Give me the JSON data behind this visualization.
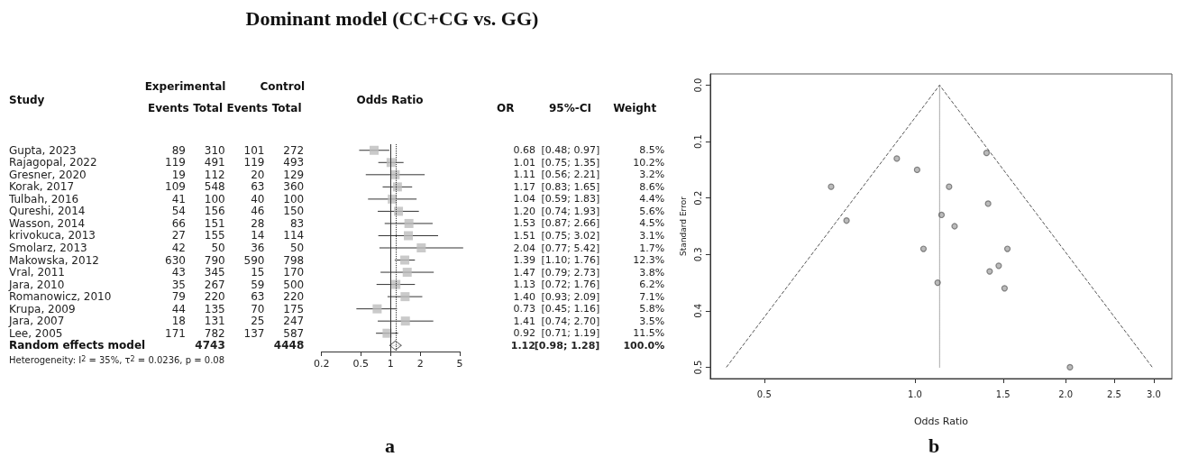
{
  "chart_data": [
    {
      "type": "heatmap",
      "title": "Dominant model (CC+CG vs. GG)",
      "ylabel": "Study",
      "categories": [
        "Events",
        "Total",
        "Events",
        "Total"
      ],
      "y_categories": [
        "Gupta, 2023",
        "Rajagopal, 2022",
        "Gresner, 2020",
        "Korak, 2017",
        "Tulbah, 2016",
        "Qureshi, 2014",
        "Wasson, 2014",
        "krivokuca, 2013",
        "Smolarz, 2013",
        "Makowska, 2012",
        "Vral, 2011",
        "Jara, 2010",
        "Romanowicz, 2010",
        "Krupa, 2009",
        "Jara, 2007",
        "Lee, 2005",
        "Random effects model"
      ],
      "cells": [
        [
          89,
          310,
          101,
          272
        ],
        [
          119,
          491,
          119,
          493
        ],
        [
          19,
          112,
          20,
          129
        ],
        [
          109,
          548,
          63,
          360
        ],
        [
          41,
          100,
          40,
          100
        ],
        [
          54,
          156,
          46,
          150
        ],
        [
          66,
          151,
          28,
          83
        ],
        [
          27,
          155,
          14,
          114
        ],
        [
          42,
          50,
          36,
          50
        ],
        [
          630,
          790,
          590,
          798
        ],
        [
          43,
          345,
          15,
          170
        ],
        [
          35,
          267,
          59,
          500
        ],
        [
          79,
          220,
          63,
          220
        ],
        [
          44,
          135,
          70,
          175
        ],
        [
          18,
          131,
          25,
          247
        ],
        [
          171,
          782,
          137,
          587
        ],
        [
          null,
          4743,
          null,
          4448
        ]
      ],
      "data_labels": true,
      "annotations": [
        "Experimental",
        "Control",
        "Heterogeneity: I$^{2}$ = 35%, τ$^{2}$ = 0.0236, p = 0.08"
      ]
    },
    {
      "type": "scatter",
      "xlabel": "Odds Ratio",
      "orientation": "horizontal",
      "log": "x",
      "xlim": [
        0.2,
        5
      ],
      "xticks": [
        0.2,
        0.5,
        1,
        2,
        5
      ],
      "tick_labels": "x",
      "grid": false,
      "categories": [
        null,
        null,
        null,
        null,
        null,
        null,
        null,
        null,
        null,
        null,
        null,
        null,
        null,
        null,
        null,
        null,
        null
      ],
      "series": [
        {
          "color": "#bdbdbd",
          "marker": "square",
          "values": [
            0.68,
            1.01,
            1.11,
            1.17,
            1.04,
            1.2,
            1.53,
            1.51,
            2.04,
            1.39,
            1.47,
            1.13,
            1.4,
            0.73,
            1.41,
            0.92,
            null
          ],
          "errors": [
            [
              0.48,
              0.97
            ],
            [
              0.75,
              1.35
            ],
            [
              0.56,
              2.21
            ],
            [
              0.83,
              1.65
            ],
            [
              0.59,
              1.83
            ],
            [
              0.74,
              1.93
            ],
            [
              0.87,
              2.66
            ],
            [
              0.75,
              3.02
            ],
            [
              0.77,
              5.42
            ],
            [
              1.1,
              1.76
            ],
            [
              0.79,
              2.73
            ],
            [
              0.72,
              1.76
            ],
            [
              0.93,
              2.09
            ],
            [
              0.45,
              1.16
            ],
            [
              0.74,
              2.7
            ],
            [
              0.71,
              1.19
            ],
            null
          ]
        },
        {
          "color": "#ffffff",
          "marker": "diamond",
          "values": [
            null,
            null,
            null,
            null,
            null,
            null,
            null,
            null,
            null,
            null,
            null,
            null,
            null,
            null,
            null,
            null,
            1.12
          ],
          "errors": [
            null,
            null,
            null,
            null,
            null,
            null,
            null,
            null,
            null,
            null,
            null,
            null,
            null,
            null,
            null,
            null,
            [
              0.98,
              1.28
            ]
          ]
        }
      ],
      "ref_lines": [
        {
          "axis": "x",
          "value": 1,
          "color": "#333333",
          "line_style": "solid"
        },
        {
          "axis": "x",
          "value": 1.12,
          "color": "#333333",
          "line_style": "dotted"
        }
      ],
      "annotations": [
        "a"
      ]
    },
    {
      "type": "heatmap",
      "categories": [
        "OR",
        "95%-CI",
        "Weight"
      ],
      "y_categories": [
        null,
        null,
        null,
        null,
        null,
        null,
        null,
        null,
        null,
        null,
        null,
        null,
        null,
        null,
        null,
        null,
        null
      ],
      "cells": [
        [
          0.68,
          null,
          8.5
        ],
        [
          1.01,
          null,
          10.2
        ],
        [
          1.11,
          null,
          3.2
        ],
        [
          1.17,
          null,
          8.6
        ],
        [
          1.04,
          null,
          4.4
        ],
        [
          1.2,
          null,
          5.6
        ],
        [
          1.53,
          null,
          4.5
        ],
        [
          1.51,
          null,
          3.1
        ],
        [
          2.04,
          null,
          1.7
        ],
        [
          1.39,
          null,
          12.3
        ],
        [
          1.47,
          null,
          3.8
        ],
        [
          1.13,
          null,
          6.2
        ],
        [
          1.4,
          null,
          7.1
        ],
        [
          0.73,
          null,
          5.8
        ],
        [
          1.41,
          null,
          3.5
        ],
        [
          0.92,
          null,
          11.5
        ],
        [
          1.12,
          null,
          100.0
        ]
      ],
      "cell_labels": [
        [
          "0.68",
          "[0.48; 0.97]",
          "8.5%"
        ],
        [
          "1.01",
          "[0.75; 1.35]",
          "10.2%"
        ],
        [
          "1.11",
          "[0.56; 2.21]",
          "3.2%"
        ],
        [
          "1.17",
          "[0.83; 1.65]",
          "8.6%"
        ],
        [
          "1.04",
          "[0.59; 1.83]",
          "4.4%"
        ],
        [
          "1.20",
          "[0.74; 1.93]",
          "5.6%"
        ],
        [
          "1.53",
          "[0.87; 2.66]",
          "4.5%"
        ],
        [
          "1.51",
          "[0.75; 3.02]",
          "3.1%"
        ],
        [
          "2.04",
          "[0.77; 5.42]",
          "1.7%"
        ],
        [
          "1.39",
          "[1.10; 1.76]",
          "12.3%"
        ],
        [
          "1.47",
          "[0.79; 2.73]",
          "3.8%"
        ],
        [
          "1.13",
          "[0.72; 1.76]",
          "6.2%"
        ],
        [
          "1.40",
          "[0.93; 2.09]",
          "7.1%"
        ],
        [
          "0.73",
          "[0.45; 1.16]",
          "5.8%"
        ],
        [
          "1.41",
          "[0.74; 2.70]",
          "3.5%"
        ],
        [
          "0.92",
          "[0.71; 1.19]",
          "11.5%"
        ],
        [
          "1.12",
          "[0.98; 1.28]",
          "100.0%"
        ]
      ]
    },
    {
      "type": "scatter",
      "xlabel": "Odds Ratio",
      "ylabel": "Standard Error",
      "log": "x",
      "xlim": [
        0.39,
        3.26
      ],
      "xticks": [
        0.5,
        {
          "value": 1,
          "label": "1.0"
        },
        1.5,
        {
          "value": 2,
          "label": "2.0"
        },
        2.5,
        {
          "value": 3,
          "label": "3.0"
        }
      ],
      "ylim": [
        0.52,
        -0.02
      ],
      "yticks": [
        {
          "value": 0,
          "label": "0.0"
        },
        0.1,
        0.2,
        0.3,
        0.4,
        0.5
      ],
      "grid": false,
      "series": [
        {
          "type": "scatter",
          "marker": "circle",
          "color": "#666666",
          "x": [
            0.68,
            1.01,
            1.11,
            1.17,
            1.04,
            1.2,
            1.53,
            1.51,
            2.04,
            1.39,
            1.47,
            1.13,
            1.4,
            0.73,
            1.41,
            0.92
          ],
          "values": [
            0.18,
            0.15,
            0.35,
            0.18,
            0.29,
            0.25,
            0.29,
            0.36,
            0.5,
            0.12,
            0.32,
            0.23,
            0.21,
            0.24,
            0.33,
            0.13
          ]
        },
        {
          "type": "line",
          "marker": "none",
          "line_style": "dashed",
          "color": "#555555",
          "x": [
            0.42,
            1.12,
            2.98
          ],
          "values": [
            0.5,
            0,
            0.5
          ]
        },
        {
          "type": "line",
          "marker": "none",
          "line_style": "dotted",
          "color": "#555555",
          "x": [
            1.12,
            1.12
          ],
          "values": [
            0,
            0.5
          ]
        }
      ],
      "annotations": [
        "b"
      ]
    }
  ]
}
